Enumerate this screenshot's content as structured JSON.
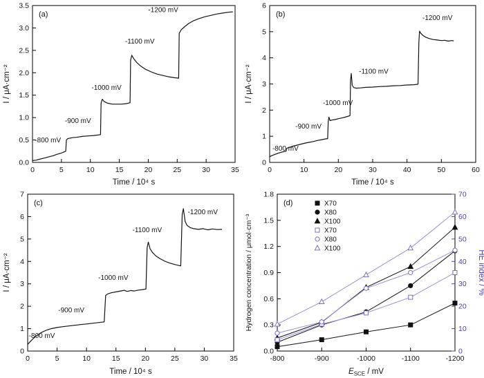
{
  "figure": {
    "background": "#ffffff"
  },
  "chart_data": [
    {
      "id": "a",
      "panel_label": "(a)",
      "type": "line",
      "xlabel": "Time / 10⁴ s",
      "ylabel": "I / μA·cm⁻²",
      "xlim": [
        0,
        35
      ],
      "ylim": [
        0,
        3.5
      ],
      "xticks": [
        0,
        5,
        10,
        15,
        20,
        25,
        30,
        35
      ],
      "yticks": [
        0,
        0.5,
        1,
        1.5,
        2,
        2.5,
        3,
        3.5
      ],
      "ytick_decimals": 1,
      "line_color": "#111111",
      "grid": false,
      "annotations": [
        {
          "text": "-800 mV",
          "x": 0.4,
          "y": 0.45
        },
        {
          "text": "-900 mV",
          "x": 5.6,
          "y": 0.88
        },
        {
          "text": "-1000 mV",
          "x": 10.2,
          "y": 1.62
        },
        {
          "text": "-1100 mV",
          "x": 16.0,
          "y": 2.65
        },
        {
          "text": "-1200 mV",
          "x": 20.0,
          "y": 3.35
        }
      ],
      "curve": [
        [
          0,
          0.04
        ],
        [
          0.6,
          0.05
        ],
        [
          1.2,
          0.07
        ],
        [
          1.8,
          0.09
        ],
        [
          2.4,
          0.11
        ],
        [
          3,
          0.13
        ],
        [
          3.6,
          0.15
        ],
        [
          4.2,
          0.18
        ],
        [
          4.8,
          0.2
        ],
        [
          5.4,
          0.23
        ],
        [
          5.75,
          0.25
        ],
        [
          5.85,
          0.5
        ],
        [
          6.1,
          0.53
        ],
        [
          6.8,
          0.55
        ],
        [
          7.6,
          0.56
        ],
        [
          8.6,
          0.58
        ],
        [
          9.6,
          0.59
        ],
        [
          10.6,
          0.6
        ],
        [
          11.3,
          0.61
        ],
        [
          11.75,
          0.62
        ],
        [
          11.85,
          1.32
        ],
        [
          12.05,
          1.41
        ],
        [
          12.35,
          1.36
        ],
        [
          13,
          1.32
        ],
        [
          13.8,
          1.3
        ],
        [
          14.6,
          1.3
        ],
        [
          15.4,
          1.3
        ],
        [
          16.2,
          1.31
        ],
        [
          16.85,
          1.33
        ],
        [
          16.95,
          2.28
        ],
        [
          17.15,
          2.39
        ],
        [
          17.45,
          2.32
        ],
        [
          18,
          2.23
        ],
        [
          18.7,
          2.15
        ],
        [
          19.5,
          2.08
        ],
        [
          20.5,
          2.02
        ],
        [
          21.5,
          1.97
        ],
        [
          22.5,
          1.94
        ],
        [
          23.5,
          1.91
        ],
        [
          24.5,
          1.89
        ],
        [
          25.25,
          1.88
        ],
        [
          25.35,
          2.88
        ],
        [
          25.7,
          2.96
        ],
        [
          26.3,
          3.03
        ],
        [
          27,
          3.1
        ],
        [
          27.8,
          3.16
        ],
        [
          28.8,
          3.21
        ],
        [
          29.8,
          3.25
        ],
        [
          30.8,
          3.28
        ],
        [
          31.8,
          3.31
        ],
        [
          32.8,
          3.33
        ],
        [
          33.8,
          3.35
        ],
        [
          34.6,
          3.36
        ]
      ]
    },
    {
      "id": "b",
      "panel_label": "(b)",
      "type": "line",
      "xlabel": "Time / 10⁴ s",
      "ylabel": "I / μA·cm⁻²",
      "xlim": [
        0,
        60
      ],
      "ylim": [
        0,
        6
      ],
      "xticks": [
        0,
        10,
        20,
        30,
        40,
        50,
        60
      ],
      "yticks": [
        0,
        1,
        2,
        3,
        4,
        5,
        6
      ],
      "ytick_decimals": 0,
      "line_color": "#111111",
      "grid": false,
      "annotations": [
        {
          "text": "-800 mV",
          "x": 0.8,
          "y": 0.45
        },
        {
          "text": "-900 mV",
          "x": 7.5,
          "y": 1.3
        },
        {
          "text": "-1000 mV",
          "x": 15.5,
          "y": 2.2
        },
        {
          "text": "-1100 mV",
          "x": 26.0,
          "y": 3.4
        },
        {
          "text": "-1200 mV",
          "x": 44.5,
          "y": 5.45
        }
      ],
      "curve": [
        [
          0,
          0.22
        ],
        [
          0.8,
          0.27
        ],
        [
          1.6,
          0.31
        ],
        [
          2.4,
          0.35
        ],
        [
          3.2,
          0.38
        ],
        [
          4,
          0.41
        ],
        [
          4.8,
          0.43
        ],
        [
          5,
          0.54
        ],
        [
          5.8,
          0.58
        ],
        [
          6.8,
          0.62
        ],
        [
          8,
          0.66
        ],
        [
          9.2,
          0.7
        ],
        [
          10.4,
          0.74
        ],
        [
          11.6,
          0.77
        ],
        [
          12.8,
          0.8
        ],
        [
          14,
          0.84
        ],
        [
          15.2,
          0.87
        ],
        [
          16.4,
          0.9
        ],
        [
          16.9,
          0.91
        ],
        [
          17.05,
          1.55
        ],
        [
          17.25,
          1.73
        ],
        [
          17.6,
          1.6
        ],
        [
          18.2,
          1.62
        ],
        [
          19,
          1.64
        ],
        [
          20,
          1.67
        ],
        [
          21,
          1.7
        ],
        [
          22,
          1.73
        ],
        [
          23,
          1.77
        ],
        [
          23.4,
          1.79
        ],
        [
          23.55,
          3.15
        ],
        [
          23.75,
          3.4
        ],
        [
          24.05,
          2.95
        ],
        [
          24.5,
          2.86
        ],
        [
          25.2,
          2.84
        ],
        [
          26.5,
          2.85
        ],
        [
          28,
          2.87
        ],
        [
          30,
          2.88
        ],
        [
          32,
          2.9
        ],
        [
          34,
          2.91
        ],
        [
          36,
          2.93
        ],
        [
          38,
          2.94
        ],
        [
          40,
          2.96
        ],
        [
          42,
          2.97
        ],
        [
          43.2,
          2.99
        ],
        [
          43.45,
          4.6
        ],
        [
          43.65,
          5.02
        ],
        [
          44,
          4.94
        ],
        [
          44.6,
          4.86
        ],
        [
          45.4,
          4.79
        ],
        [
          46.4,
          4.74
        ],
        [
          47.6,
          4.7
        ],
        [
          48.8,
          4.68
        ],
        [
          50,
          4.66
        ],
        [
          51,
          4.67
        ],
        [
          52,
          4.64
        ],
        [
          53,
          4.66
        ],
        [
          53.6,
          4.65
        ]
      ]
    },
    {
      "id": "c",
      "panel_label": "(c)",
      "type": "line",
      "xlabel": "Time / 10⁴ s",
      "ylabel": "I / μA·cm⁻²",
      "xlim": [
        0,
        35
      ],
      "ylim": [
        0,
        7
      ],
      "xticks": [
        0,
        5,
        10,
        15,
        20,
        25,
        30,
        35
      ],
      "yticks": [
        0,
        1,
        2,
        3,
        4,
        5,
        6,
        7
      ],
      "ytick_decimals": 0,
      "line_color": "#111111",
      "grid": false,
      "annotations": [
        {
          "text": "-800 mV",
          "x": 0.2,
          "y": 0.58
        },
        {
          "text": "-900 mV",
          "x": 5.2,
          "y": 1.72
        },
        {
          "text": "-1000 mV",
          "x": 12.0,
          "y": 3.18
        },
        {
          "text": "-1100 mV",
          "x": 17.8,
          "y": 5.3
        },
        {
          "text": "-1200 mV",
          "x": 27.2,
          "y": 6.1
        }
      ],
      "curve": [
        [
          0,
          0.3
        ],
        [
          0.5,
          0.44
        ],
        [
          1,
          0.57
        ],
        [
          1.5,
          0.68
        ],
        [
          2,
          0.77
        ],
        [
          2.5,
          0.85
        ],
        [
          3,
          0.91
        ],
        [
          3.5,
          0.96
        ],
        [
          4,
          1.0
        ],
        [
          5,
          1.05
        ],
        [
          6,
          1.09
        ],
        [
          7,
          1.12
        ],
        [
          8,
          1.15
        ],
        [
          9,
          1.18
        ],
        [
          10,
          1.21
        ],
        [
          11,
          1.24
        ],
        [
          12,
          1.27
        ],
        [
          13,
          1.3
        ],
        [
          13.25,
          2.48
        ],
        [
          13.6,
          2.55
        ],
        [
          14.2,
          2.6
        ],
        [
          15,
          2.64
        ],
        [
          15.8,
          2.68
        ],
        [
          16.4,
          2.71
        ],
        [
          16.9,
          2.66
        ],
        [
          17.5,
          2.7
        ],
        [
          18.1,
          2.68
        ],
        [
          18.8,
          2.72
        ],
        [
          19.5,
          2.74
        ],
        [
          20.1,
          2.77
        ],
        [
          20.3,
          4.62
        ],
        [
          20.5,
          4.86
        ],
        [
          20.8,
          4.56
        ],
        [
          21.2,
          4.4
        ],
        [
          21.8,
          4.24
        ],
        [
          22.5,
          4.12
        ],
        [
          23.3,
          4.01
        ],
        [
          24.1,
          3.93
        ],
        [
          25,
          3.86
        ],
        [
          26,
          3.8
        ],
        [
          26.25,
          6.08
        ],
        [
          26.45,
          6.36
        ],
        [
          26.75,
          5.78
        ],
        [
          27.1,
          5.6
        ],
        [
          27.6,
          5.51
        ],
        [
          28.2,
          5.46
        ],
        [
          29,
          5.43
        ],
        [
          29.8,
          5.46
        ],
        [
          30.6,
          5.41
        ],
        [
          31.4,
          5.45
        ],
        [
          32.2,
          5.42
        ],
        [
          33,
          5.43
        ]
      ]
    },
    {
      "id": "d",
      "panel_label": "(d)",
      "type": "scatter",
      "xlabel": {
        "pre": "E",
        "sub": "SCE",
        "post": " / mV"
      },
      "ylabel": "Hydrogen concentration / μmol·cm⁻³",
      "y2label": "HE index / %",
      "xlim": [
        -800,
        -1200
      ],
      "ylim": [
        0,
        1.8
      ],
      "y2lim": [
        0,
        70
      ],
      "xticks": [
        -800,
        -900,
        -1000,
        -1100,
        -1200
      ],
      "yticks": [
        0,
        0.3,
        0.6,
        0.9,
        1.2,
        1.5,
        1.8
      ],
      "y2ticks": [
        0,
        10,
        20,
        30,
        40,
        50,
        60,
        70
      ],
      "ytick_decimals": 1,
      "y2_color": "#4a3fb5",
      "grid": false,
      "x": [
        -800,
        -900,
        -1000,
        -1100,
        -1200
      ],
      "series": [
        {
          "name": "X70",
          "marker": "square",
          "fill": true,
          "axis": "left",
          "color": "#111111",
          "line_color": "#111111",
          "values": [
            0.05,
            0.13,
            0.22,
            0.3,
            0.55
          ]
        },
        {
          "name": "X80",
          "marker": "circle",
          "fill": true,
          "axis": "left",
          "color": "#111111",
          "line_color": "#111111",
          "values": [
            0.1,
            0.3,
            0.45,
            0.75,
            1.15
          ]
        },
        {
          "name": "X100",
          "marker": "triangle",
          "fill": true,
          "axis": "left",
          "color": "#111111",
          "line_color": "#111111",
          "values": [
            0.15,
            0.33,
            0.73,
            0.97,
            1.42
          ]
        },
        {
          "name": "X70",
          "marker": "square",
          "fill": false,
          "axis": "right",
          "color": "#7a6cc4",
          "line_color": "#9a8fd4",
          "values": [
            5,
            12,
            17,
            24,
            35
          ]
        },
        {
          "name": "X80",
          "marker": "circle",
          "fill": false,
          "axis": "right",
          "color": "#7a6cc4",
          "line_color": "#9a8fd4",
          "values": [
            8,
            13,
            28,
            35,
            45
          ]
        },
        {
          "name": "X100",
          "marker": "triangle",
          "fill": false,
          "axis": "right",
          "color": "#7a6cc4",
          "line_color": "#9a8fd4",
          "values": [
            12,
            22,
            34,
            46,
            62
          ]
        }
      ]
    }
  ]
}
